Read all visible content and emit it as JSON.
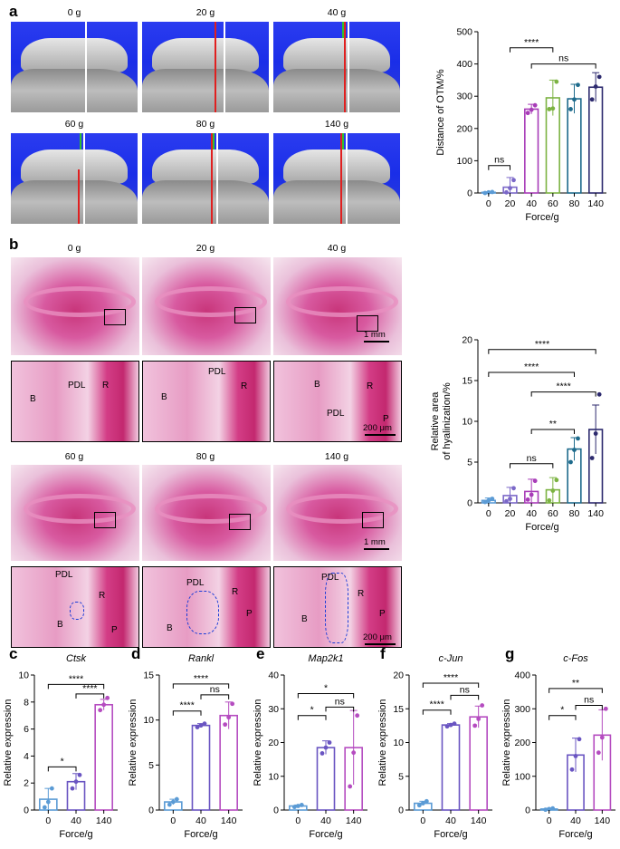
{
  "panel_letters": {
    "a": "a",
    "b": "b",
    "c": "c",
    "d": "d",
    "e": "e",
    "f": "f",
    "g": "g"
  },
  "micro_ct": {
    "labels": [
      "0 g",
      "20 g",
      "40 g",
      "60 g",
      "80 g",
      "140 g"
    ]
  },
  "histology": {
    "labels": [
      "0 g",
      "20 g",
      "40 g",
      "60 g",
      "80 g",
      "140 g"
    ],
    "scale_overview": "1 mm",
    "scale_zoom": "200 μm",
    "zoom_top": [
      {
        "B": "B",
        "PDL": "PDL",
        "R": "R"
      },
      {
        "B": "B",
        "PDL": "PDL",
        "R": "R"
      },
      {
        "B": "B",
        "PDL": "PDL",
        "R": "R",
        "P": "P"
      }
    ],
    "zoom_bottom": [
      {
        "B": "B",
        "PDL": "PDL",
        "R": "R",
        "P": "P"
      },
      {
        "B": "B",
        "PDL": "PDL",
        "R": "R",
        "P": "P"
      },
      {
        "B": "B",
        "PDL": "PDL",
        "R": "R",
        "P": "P"
      }
    ]
  },
  "colors": {
    "g0": "#5b9bd5",
    "g20": "#7b68c8",
    "g40": "#a83cb8",
    "g60": "#7cb342",
    "g80": "#1e6b8c",
    "g140": "#2d2a6e",
    "qpcr0": "#5b9bd5",
    "qpcr40": "#6a55c2",
    "qpcr140": "#b54cc0"
  },
  "chart_data": [
    {
      "id": "a",
      "type": "bar",
      "categories": [
        "0",
        "20",
        "40",
        "60",
        "80",
        "140"
      ],
      "values": [
        2,
        18,
        260,
        295,
        292,
        328
      ],
      "errors": [
        2,
        30,
        15,
        55,
        45,
        45
      ],
      "points": [
        [
          0,
          2,
          3
        ],
        [
          2,
          15,
          40
        ],
        [
          248,
          258,
          272
        ],
        [
          260,
          262,
          345
        ],
        [
          260,
          290,
          335
        ],
        [
          290,
          330,
          360
        ]
      ],
      "xlabel": "Force/g",
      "ylabel": "Distance of OTM/%",
      "ylim": [
        0,
        500
      ],
      "yticks": [
        0,
        100,
        200,
        300,
        400,
        500
      ],
      "sig": [
        {
          "from": 1,
          "to": 3,
          "label": "****",
          "y": 450
        },
        {
          "from": 2,
          "to": 5,
          "label": "ns",
          "y": 400
        },
        {
          "from": 0,
          "to": 1,
          "label": "ns",
          "y": 85
        }
      ]
    },
    {
      "id": "b",
      "type": "bar",
      "categories": [
        "0",
        "20",
        "40",
        "60",
        "80",
        "140"
      ],
      "values": [
        0.3,
        0.9,
        1.4,
        1.6,
        6.6,
        9.0
      ],
      "errors": [
        0.3,
        1.0,
        1.5,
        1.5,
        1.4,
        3.0
      ],
      "points": [
        [
          0.1,
          0.3,
          0.5
        ],
        [
          0.2,
          0.5,
          1.8
        ],
        [
          0.4,
          1.0,
          2.7
        ],
        [
          0.3,
          1.5,
          2.8
        ],
        [
          5.0,
          6.5,
          7.9
        ],
        [
          5.5,
          8.5,
          13.3
        ]
      ],
      "xlabel": "Force/g",
      "ylabel": "Relative area\nof hyalinization/%",
      "ylim": [
        0,
        20
      ],
      "yticks": [
        0,
        5,
        10,
        15,
        20
      ],
      "sig": [
        {
          "from": 0,
          "to": 5,
          "label": "****",
          "y": 18.8
        },
        {
          "from": 0,
          "to": 4,
          "label": "****",
          "y": 16.0
        },
        {
          "from": 2,
          "to": 5,
          "label": "****",
          "y": 13.6
        },
        {
          "from": 2,
          "to": 4,
          "label": "**",
          "y": 9.0
        },
        {
          "from": 1,
          "to": 3,
          "label": "ns",
          "y": 4.8
        }
      ]
    },
    {
      "id": "c",
      "type": "bar",
      "title": "Ctsk",
      "categories": [
        "0",
        "40",
        "140"
      ],
      "values": [
        0.8,
        2.1,
        7.8
      ],
      "errors": [
        0.8,
        0.6,
        0.4
      ],
      "points": [
        [
          0.2,
          0.6,
          1.6
        ],
        [
          1.6,
          2.1,
          2.6
        ],
        [
          7.4,
          7.8,
          8.3
        ]
      ],
      "xlabel": "Force/g",
      "ylabel": "Relative expression",
      "ylim": [
        0,
        10
      ],
      "yticks": [
        0,
        2,
        4,
        6,
        8,
        10
      ],
      "sig": [
        {
          "from": 0,
          "to": 2,
          "label": "****",
          "y": 9.3
        },
        {
          "from": 1,
          "to": 2,
          "label": "****",
          "y": 8.6
        },
        {
          "from": 0,
          "to": 1,
          "label": "*",
          "y": 3.2
        }
      ]
    },
    {
      "id": "d",
      "type": "bar",
      "title": "Rankl",
      "categories": [
        "0",
        "40",
        "140"
      ],
      "values": [
        0.9,
        9.4,
        10.5
      ],
      "errors": [
        0.3,
        0.2,
        1.5
      ],
      "points": [
        [
          0.6,
          0.9,
          1.2
        ],
        [
          9.2,
          9.4,
          9.6
        ],
        [
          9.5,
          10.3,
          11.8
        ]
      ],
      "xlabel": "Force/g",
      "ylabel": "Relative expression",
      "ylim": [
        0,
        15
      ],
      "yticks": [
        0,
        5,
        10,
        15
      ],
      "sig": [
        {
          "from": 0,
          "to": 2,
          "label": "****",
          "y": 14.0
        },
        {
          "from": 1,
          "to": 2,
          "label": "ns",
          "y": 12.8
        },
        {
          "from": 0,
          "to": 1,
          "label": "****",
          "y": 11.0
        }
      ]
    },
    {
      "id": "e",
      "type": "bar",
      "title": "Map2k1",
      "categories": [
        "0",
        "40",
        "140"
      ],
      "values": [
        1.2,
        18.5,
        18.5
      ],
      "errors": [
        0.3,
        2.0,
        11
      ],
      "points": [
        [
          0.9,
          1.2,
          1.5
        ],
        [
          16.8,
          18.5,
          20.0
        ],
        [
          7,
          17,
          28
        ]
      ],
      "xlabel": "Force/g",
      "ylabel": "Relative expression",
      "ylim": [
        0,
        40
      ],
      "yticks": [
        0,
        10,
        20,
        30,
        40
      ],
      "sig": [
        {
          "from": 0,
          "to": 2,
          "label": "*",
          "y": 34.5
        },
        {
          "from": 1,
          "to": 2,
          "label": "ns",
          "y": 30.5
        },
        {
          "from": 0,
          "to": 1,
          "label": "*",
          "y": 28.0
        }
      ]
    },
    {
      "id": "f",
      "type": "bar",
      "title": "c-Jun",
      "categories": [
        "0",
        "40",
        "140"
      ],
      "values": [
        1.0,
        12.6,
        13.8
      ],
      "errors": [
        0.3,
        0.2,
        1.6
      ],
      "points": [
        [
          0.7,
          1.0,
          1.3
        ],
        [
          12.4,
          12.6,
          12.8
        ],
        [
          12.5,
          13.5,
          15.5
        ]
      ],
      "xlabel": "Force/g",
      "ylabel": "Relative expression",
      "ylim": [
        0,
        20
      ],
      "yticks": [
        0,
        5,
        10,
        15,
        20
      ],
      "sig": [
        {
          "from": 0,
          "to": 2,
          "label": "****",
          "y": 18.8
        },
        {
          "from": 1,
          "to": 2,
          "label": "ns",
          "y": 17.0
        },
        {
          "from": 0,
          "to": 1,
          "label": "****",
          "y": 14.8
        }
      ]
    },
    {
      "id": "g",
      "type": "bar",
      "title": "c-Fos",
      "categories": [
        "0",
        "40",
        "140"
      ],
      "values": [
        3,
        163,
        222
      ],
      "errors": [
        2,
        50,
        75
      ],
      "points": [
        [
          1,
          3,
          5
        ],
        [
          120,
          160,
          210
        ],
        [
          170,
          215,
          300
        ]
      ],
      "xlabel": "Force/g",
      "ylabel": "Relative expression",
      "ylim": [
        0,
        400
      ],
      "yticks": [
        0,
        100,
        200,
        300,
        400
      ],
      "sig": [
        {
          "from": 0,
          "to": 2,
          "label": "**",
          "y": 360
        },
        {
          "from": 1,
          "to": 2,
          "label": "ns",
          "y": 310
        },
        {
          "from": 0,
          "to": 1,
          "label": "*",
          "y": 280
        }
      ]
    }
  ]
}
